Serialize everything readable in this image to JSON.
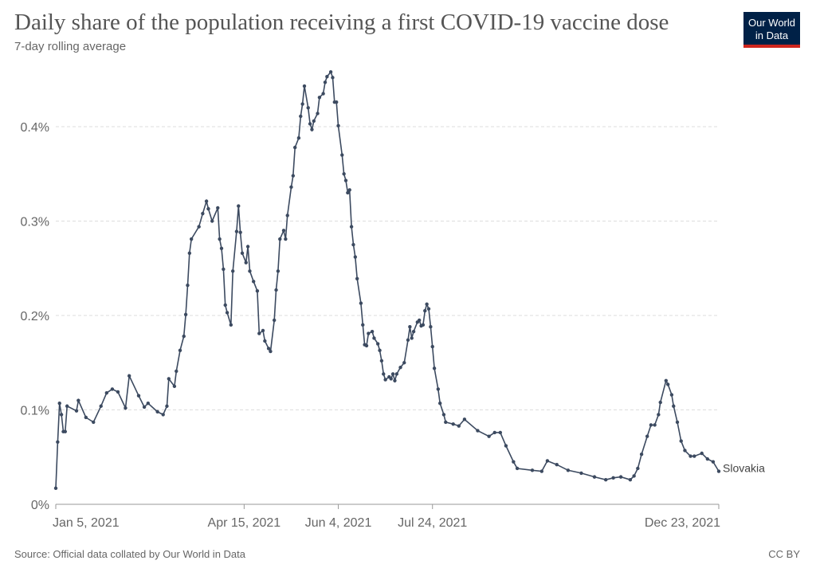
{
  "header": {
    "title": "Daily share of the population receiving a first COVID-19 vaccine dose",
    "subtitle": "7-day rolling average"
  },
  "logo": {
    "line1": "Our World",
    "line2": "in Data",
    "bg": "#002147",
    "accent": "#ce261e"
  },
  "footer": {
    "source": "Source: Official data collated by Our World in Data",
    "license": "CC BY"
  },
  "chart_data": {
    "type": "line",
    "title": "Daily share of the population receiving a first COVID-19 vaccine dose",
    "subtitle": "7-day rolling average",
    "xlim": [
      "2021-01-05",
      "2021-12-23"
    ],
    "ylim": [
      0,
      0.46
    ],
    "grid": true,
    "x_ticks": [
      {
        "date": "2021-01-05",
        "label": "Jan 5, 2021"
      },
      {
        "date": "2021-04-15",
        "label": "Apr 15, 2021"
      },
      {
        "date": "2021-06-04",
        "label": "Jun 4, 2021"
      },
      {
        "date": "2021-07-24",
        "label": "Jul 24, 2021"
      },
      {
        "date": "2021-12-23",
        "label": "Dec 23, 2021"
      }
    ],
    "y_ticks": [
      {
        "value": 0,
        "label": "0%"
      },
      {
        "value": 0.1,
        "label": "0.1%"
      },
      {
        "value": 0.2,
        "label": "0.2%"
      },
      {
        "value": 0.3,
        "label": "0.3%"
      },
      {
        "value": 0.4,
        "label": "0.4%"
      }
    ],
    "series": [
      {
        "name": "Slovakia",
        "color": "#3c4a60",
        "points": [
          [
            "2021-01-05",
            0.017
          ],
          [
            "2021-01-06",
            0.066
          ],
          [
            "2021-01-07",
            0.107
          ],
          [
            "2021-01-08",
            0.095
          ],
          [
            "2021-01-09",
            0.077
          ],
          [
            "2021-01-10",
            0.077
          ],
          [
            "2021-01-11",
            0.104
          ],
          [
            "2021-01-16",
            0.099
          ],
          [
            "2021-01-17",
            0.11
          ],
          [
            "2021-01-21",
            0.092
          ],
          [
            "2021-01-25",
            0.087
          ],
          [
            "2021-01-29",
            0.104
          ],
          [
            "2021-02-01",
            0.118
          ],
          [
            "2021-02-04",
            0.122
          ],
          [
            "2021-02-07",
            0.119
          ],
          [
            "2021-02-11",
            0.102
          ],
          [
            "2021-02-13",
            0.136
          ],
          [
            "2021-02-18",
            0.115
          ],
          [
            "2021-02-21",
            0.103
          ],
          [
            "2021-02-23",
            0.107
          ],
          [
            "2021-02-28",
            0.098
          ],
          [
            "2021-03-03",
            0.095
          ],
          [
            "2021-03-05",
            0.104
          ],
          [
            "2021-03-06",
            0.133
          ],
          [
            "2021-03-09",
            0.125
          ],
          [
            "2021-03-10",
            0.141
          ],
          [
            "2021-03-12",
            0.163
          ],
          [
            "2021-03-14",
            0.178
          ],
          [
            "2021-03-15",
            0.201
          ],
          [
            "2021-03-16",
            0.232
          ],
          [
            "2021-03-17",
            0.266
          ],
          [
            "2021-03-18",
            0.281
          ],
          [
            "2021-03-22",
            0.294
          ],
          [
            "2021-03-24",
            0.308
          ],
          [
            "2021-03-26",
            0.321
          ],
          [
            "2021-03-27",
            0.313
          ],
          [
            "2021-03-29",
            0.3
          ],
          [
            "2021-04-01",
            0.314
          ],
          [
            "2021-04-02",
            0.281
          ],
          [
            "2021-04-03",
            0.271
          ],
          [
            "2021-04-04",
            0.249
          ],
          [
            "2021-04-05",
            0.211
          ],
          [
            "2021-04-06",
            0.203
          ],
          [
            "2021-04-08",
            0.19
          ],
          [
            "2021-04-09",
            0.247
          ],
          [
            "2021-04-11",
            0.289
          ],
          [
            "2021-04-12",
            0.316
          ],
          [
            "2021-04-13",
            0.288
          ],
          [
            "2021-04-14",
            0.266
          ],
          [
            "2021-04-16",
            0.256
          ],
          [
            "2021-04-17",
            0.273
          ],
          [
            "2021-04-18",
            0.247
          ],
          [
            "2021-04-20",
            0.236
          ],
          [
            "2021-04-22",
            0.226
          ],
          [
            "2021-04-23",
            0.181
          ],
          [
            "2021-04-25",
            0.184
          ],
          [
            "2021-04-26",
            0.173
          ],
          [
            "2021-04-28",
            0.165
          ],
          [
            "2021-04-29",
            0.162
          ],
          [
            "2021-05-01",
            0.195
          ],
          [
            "2021-05-02",
            0.227
          ],
          [
            "2021-05-03",
            0.247
          ],
          [
            "2021-05-04",
            0.281
          ],
          [
            "2021-05-06",
            0.29
          ],
          [
            "2021-05-07",
            0.281
          ],
          [
            "2021-05-08",
            0.306
          ],
          [
            "2021-05-10",
            0.336
          ],
          [
            "2021-05-11",
            0.348
          ],
          [
            "2021-05-12",
            0.378
          ],
          [
            "2021-05-14",
            0.388
          ],
          [
            "2021-05-15",
            0.411
          ],
          [
            "2021-05-16",
            0.424
          ],
          [
            "2021-05-17",
            0.443
          ],
          [
            "2021-05-19",
            0.42
          ],
          [
            "2021-05-20",
            0.403
          ],
          [
            "2021-05-21",
            0.397
          ],
          [
            "2021-05-22",
            0.406
          ],
          [
            "2021-05-24",
            0.414
          ],
          [
            "2021-05-25",
            0.431
          ],
          [
            "2021-05-27",
            0.435
          ],
          [
            "2021-05-28",
            0.447
          ],
          [
            "2021-05-29",
            0.453
          ],
          [
            "2021-05-31",
            0.458
          ],
          [
            "2021-06-01",
            0.452
          ],
          [
            "2021-06-02",
            0.426
          ],
          [
            "2021-06-03",
            0.426
          ],
          [
            "2021-06-04",
            0.401
          ],
          [
            "2021-06-06",
            0.37
          ],
          [
            "2021-06-07",
            0.35
          ],
          [
            "2021-06-08",
            0.343
          ],
          [
            "2021-06-09",
            0.33
          ],
          [
            "2021-06-10",
            0.333
          ],
          [
            "2021-06-11",
            0.294
          ],
          [
            "2021-06-12",
            0.275
          ],
          [
            "2021-06-13",
            0.262
          ],
          [
            "2021-06-14",
            0.239
          ],
          [
            "2021-06-16",
            0.213
          ],
          [
            "2021-06-17",
            0.19
          ],
          [
            "2021-06-18",
            0.169
          ],
          [
            "2021-06-19",
            0.168
          ],
          [
            "2021-06-20",
            0.181
          ],
          [
            "2021-06-22",
            0.183
          ],
          [
            "2021-06-23",
            0.176
          ],
          [
            "2021-06-25",
            0.17
          ],
          [
            "2021-06-26",
            0.163
          ],
          [
            "2021-06-27",
            0.152
          ],
          [
            "2021-06-28",
            0.138
          ],
          [
            "2021-06-29",
            0.132
          ],
          [
            "2021-07-01",
            0.135
          ],
          [
            "2021-07-02",
            0.133
          ],
          [
            "2021-07-03",
            0.138
          ],
          [
            "2021-07-04",
            0.131
          ],
          [
            "2021-07-05",
            0.138
          ],
          [
            "2021-07-07",
            0.145
          ],
          [
            "2021-07-09",
            0.15
          ],
          [
            "2021-07-11",
            0.174
          ],
          [
            "2021-07-12",
            0.188
          ],
          [
            "2021-07-13",
            0.176
          ],
          [
            "2021-07-14",
            0.183
          ],
          [
            "2021-07-16",
            0.193
          ],
          [
            "2021-07-17",
            0.195
          ],
          [
            "2021-07-18",
            0.189
          ],
          [
            "2021-07-19",
            0.19
          ],
          [
            "2021-07-20",
            0.205
          ],
          [
            "2021-07-21",
            0.212
          ],
          [
            "2021-07-22",
            0.207
          ],
          [
            "2021-07-23",
            0.188
          ],
          [
            "2021-07-24",
            0.167
          ],
          [
            "2021-07-25",
            0.144
          ],
          [
            "2021-07-27",
            0.122
          ],
          [
            "2021-07-28",
            0.107
          ],
          [
            "2021-07-30",
            0.095
          ],
          [
            "2021-07-31",
            0.087
          ],
          [
            "2021-08-04",
            0.085
          ],
          [
            "2021-08-07",
            0.083
          ],
          [
            "2021-08-10",
            0.09
          ],
          [
            "2021-08-17",
            0.078
          ],
          [
            "2021-08-23",
            0.072
          ],
          [
            "2021-08-26",
            0.076
          ],
          [
            "2021-08-29",
            0.076
          ],
          [
            "2021-09-01",
            0.062
          ],
          [
            "2021-09-05",
            0.045
          ],
          [
            "2021-09-07",
            0.038
          ],
          [
            "2021-09-15",
            0.036
          ],
          [
            "2021-09-20",
            0.035
          ],
          [
            "2021-09-23",
            0.046
          ],
          [
            "2021-09-28",
            0.042
          ],
          [
            "2021-10-04",
            0.036
          ],
          [
            "2021-10-11",
            0.033
          ],
          [
            "2021-10-18",
            0.029
          ],
          [
            "2021-10-24",
            0.026
          ],
          [
            "2021-10-28",
            0.028
          ],
          [
            "2021-11-01",
            0.029
          ],
          [
            "2021-11-06",
            0.026
          ],
          [
            "2021-11-08",
            0.03
          ],
          [
            "2021-11-10",
            0.038
          ],
          [
            "2021-11-12",
            0.053
          ],
          [
            "2021-11-15",
            0.072
          ],
          [
            "2021-11-17",
            0.084
          ],
          [
            "2021-11-19",
            0.084
          ],
          [
            "2021-11-21",
            0.095
          ],
          [
            "2021-11-22",
            0.108
          ],
          [
            "2021-11-25",
            0.131
          ],
          [
            "2021-11-26",
            0.127
          ],
          [
            "2021-11-28",
            0.116
          ],
          [
            "2021-11-29",
            0.104
          ],
          [
            "2021-12-01",
            0.087
          ],
          [
            "2021-12-03",
            0.067
          ],
          [
            "2021-12-05",
            0.057
          ],
          [
            "2021-12-08",
            0.051
          ],
          [
            "2021-12-10",
            0.051
          ],
          [
            "2021-12-14",
            0.054
          ],
          [
            "2021-12-17",
            0.048
          ],
          [
            "2021-12-20",
            0.045
          ],
          [
            "2021-12-23",
            0.035
          ]
        ]
      }
    ]
  }
}
